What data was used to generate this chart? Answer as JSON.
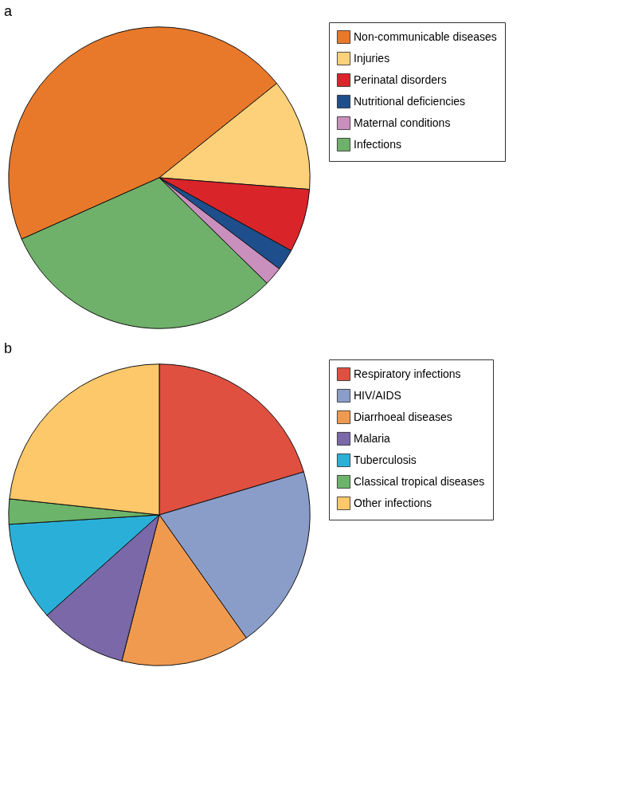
{
  "chart_data": [
    {
      "type": "pie",
      "title": "a",
      "legend": "right",
      "categories": [
        "Non-communicable diseases",
        "Injuries",
        "Perinatal disorders",
        "Nutritional deficiencies",
        "Maternal conditions",
        "Infections"
      ],
      "values": [
        45.9,
        12.0,
        6.8,
        2.3,
        2.0,
        31.0
      ],
      "colors": [
        "#e8782a",
        "#fdd17a",
        "#d9252a",
        "#1e4f8c",
        "#c98fbd",
        "#6fb06a"
      ]
    },
    {
      "type": "pie",
      "title": "b",
      "legend": "right",
      "categories": [
        "Respiratory infections",
        "HIV/AIDS",
        "Diarrhoeal diseases",
        "Malaria",
        "Tuberculosis",
        "Classical tropical diseases",
        "Other infections"
      ],
      "values": [
        20.4,
        19.8,
        13.8,
        9.4,
        10.6,
        2.7,
        23.3
      ],
      "colors": [
        "#e05040",
        "#8a9cc8",
        "#f09a50",
        "#7a68a8",
        "#2ab0d8",
        "#6cb46a",
        "#fdc86a"
      ]
    }
  ]
}
